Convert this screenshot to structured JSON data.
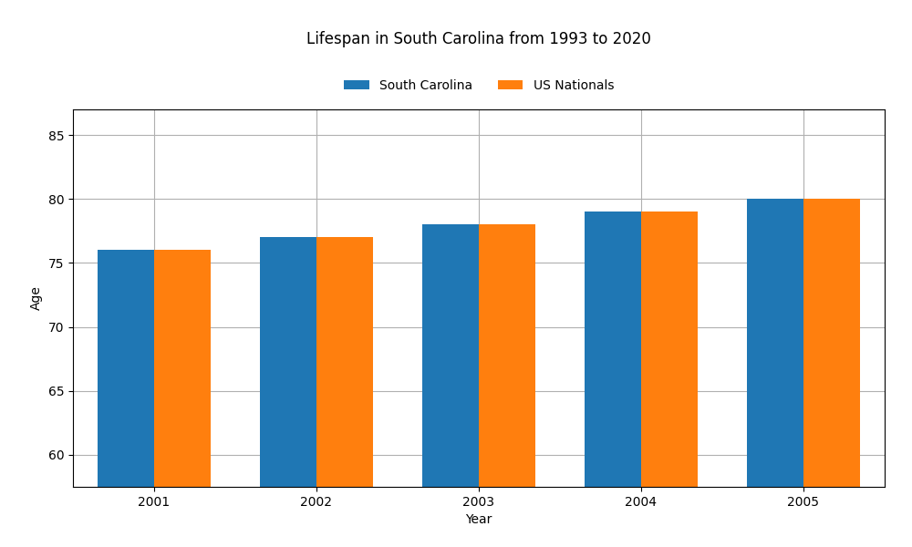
{
  "chart_data": {
    "type": "bar",
    "title": "Lifespan in South Carolina from 1993 to 2020",
    "x_label": "Year",
    "y_label": "Age",
    "categories": [
      "2001",
      "2002",
      "2003",
      "2004",
      "2005"
    ],
    "series": [
      {
        "name": "South Carolina",
        "values": [
          76,
          77,
          78,
          79,
          80
        ]
      },
      {
        "name": "US Nationals",
        "values": [
          76,
          77,
          78,
          79,
          80
        ]
      }
    ],
    "ylim": [
      57.5,
      87
    ],
    "yticks": [
      60,
      65,
      70,
      75,
      80,
      85
    ],
    "grid": true,
    "legend": "upper center"
  }
}
